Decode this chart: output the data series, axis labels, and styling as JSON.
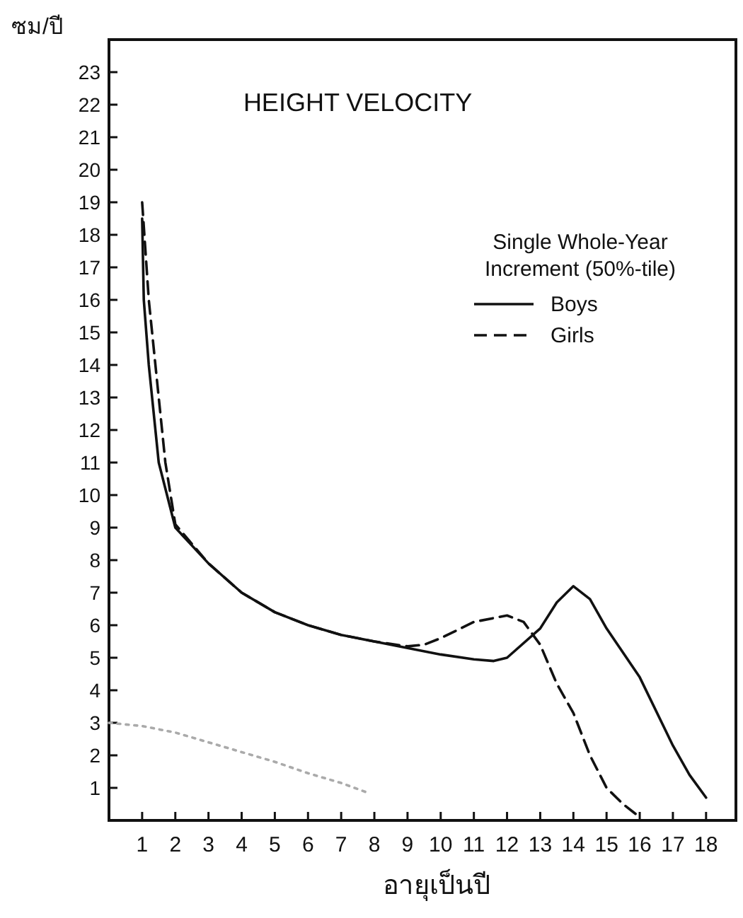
{
  "chart_data": {
    "type": "line",
    "title": "HEIGHT VELOCITY",
    "xlabel": "อายุเป็นปี",
    "ylabel": "ซม/ปี",
    "legend_title": "Single Whole-Year Increment (50%-tile)",
    "legend": "top right",
    "xlim": [
      0,
      18.9
    ],
    "ylim": [
      0,
      24
    ],
    "xticks": [
      1,
      2,
      3,
      4,
      5,
      6,
      7,
      8,
      9,
      10,
      11,
      12,
      13,
      14,
      15,
      16,
      17,
      18
    ],
    "yticks": [
      1,
      2,
      3,
      4,
      5,
      6,
      7,
      8,
      9,
      10,
      11,
      12,
      13,
      14,
      15,
      16,
      17,
      18,
      19,
      20,
      21,
      22,
      23
    ],
    "series": [
      {
        "name": "Boys",
        "color": "#111111",
        "line_style": "solid",
        "x": [
          1.0,
          1.05,
          1.2,
          1.5,
          2,
          3,
          4,
          5,
          6,
          7,
          8,
          9,
          10,
          11,
          11.6,
          12,
          13,
          13.5,
          14,
          14.5,
          15,
          16,
          17,
          17.5,
          18
        ],
        "values": [
          18.5,
          16,
          14,
          11,
          9,
          7.9,
          7.0,
          6.4,
          6.0,
          5.7,
          5.5,
          5.3,
          5.1,
          4.95,
          4.9,
          5.0,
          5.9,
          6.7,
          7.2,
          6.8,
          5.9,
          4.4,
          2.3,
          1.4,
          0.7
        ]
      },
      {
        "name": "Girls",
        "color": "#111111",
        "line_style": "dashed",
        "x": [
          1.0,
          1.2,
          1.4,
          1.7,
          2,
          3,
          4,
          5,
          6,
          7,
          8,
          9,
          9.5,
          10,
          11,
          12,
          12.5,
          13,
          13.5,
          14,
          14.5,
          15,
          15.5,
          16
        ],
        "values": [
          19,
          16,
          14,
          11,
          9.1,
          7.9,
          7.0,
          6.4,
          6.0,
          5.7,
          5.5,
          5.35,
          5.4,
          5.6,
          6.1,
          6.3,
          6.1,
          5.4,
          4.2,
          3.3,
          2.0,
          1.0,
          0.5,
          0.1
        ]
      },
      {
        "color": "#aaaaaa",
        "line_style": "dotted",
        "x": [
          0,
          1,
          2,
          3,
          4,
          5,
          6,
          7,
          7.8
        ],
        "values": [
          3.0,
          2.9,
          2.7,
          2.4,
          2.1,
          1.8,
          1.45,
          1.15,
          0.85
        ]
      }
    ]
  }
}
